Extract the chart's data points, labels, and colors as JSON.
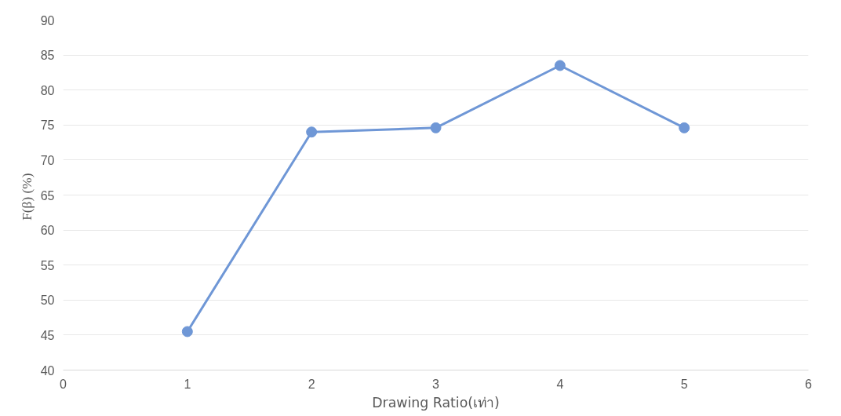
{
  "chart_data": {
    "type": "line",
    "xlabel": "Drawing Ratio(เท่า)",
    "ylabel": "F(β)  (%)",
    "x": [
      1,
      2,
      3,
      4,
      5
    ],
    "series": [
      {
        "color": "#6f97d6",
        "values": [
          45.5,
          74.0,
          74.6,
          83.5,
          74.6
        ]
      }
    ],
    "xlim": [
      0,
      6
    ],
    "xticks": [
      0,
      1,
      2,
      3,
      4,
      5,
      6
    ],
    "ylim": [
      40,
      90
    ],
    "yticks": [
      40,
      45,
      50,
      55,
      60,
      65,
      70,
      75,
      80,
      85,
      90
    ],
    "grid": "y",
    "marker": "circle",
    "line_style": "solid"
  }
}
